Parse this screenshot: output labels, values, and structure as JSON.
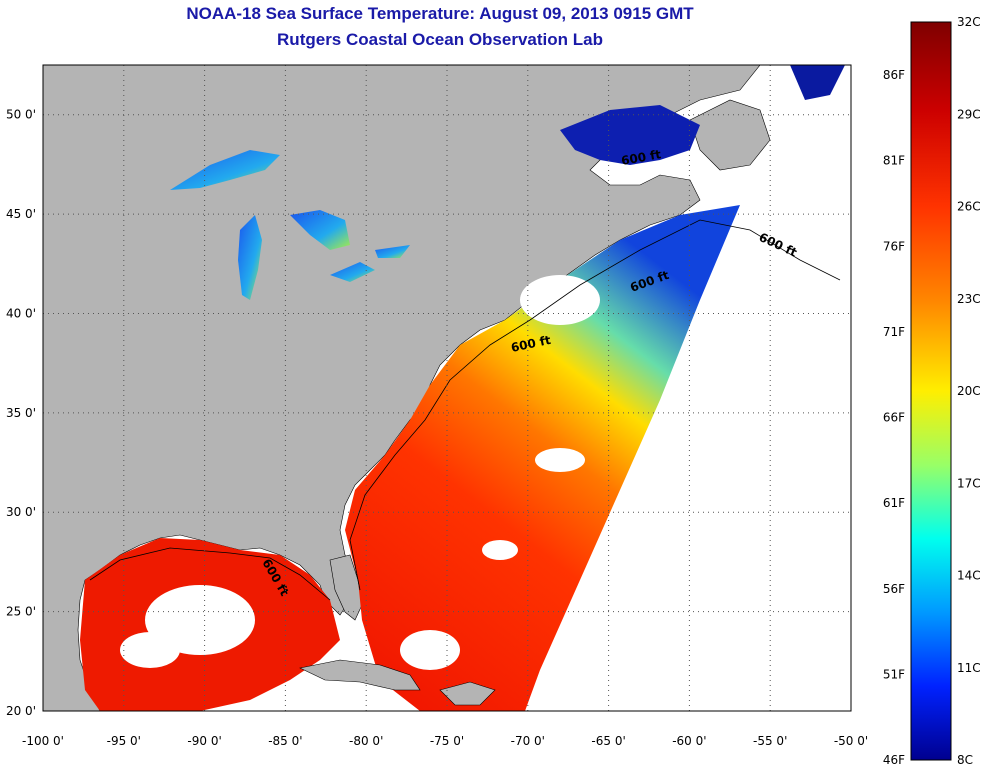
{
  "header": {
    "title": "NOAA-18 Sea Surface Temperature:  August 09, 2013 0915 GMT",
    "subtitle": "Rutgers Coastal Ocean Observation Lab"
  },
  "map": {
    "lon_range": [
      -100,
      -50
    ],
    "lat_range": [
      20,
      52.5
    ],
    "grid": "dotted",
    "x_ticks": [
      "-100 0'",
      "-95 0'",
      "-90 0'",
      "-85 0'",
      "-80 0'",
      "-75 0'",
      "-70 0'",
      "-65 0'",
      "-60 0'",
      "-55 0'",
      "-50 0'"
    ],
    "y_ticks": [
      "20 0'",
      "25 0'",
      "30 0'",
      "35 0'",
      "40 0'",
      "45 0'",
      "50 0'"
    ],
    "isobath_labels": [
      "600 ft",
      "600 ft",
      "600 ft",
      "600 ft",
      "600 ft"
    ],
    "land_color": "#b4b4b4",
    "no_data_color": "#ffffff"
  },
  "colorbar": {
    "celsius_labels": [
      "32C",
      "29C",
      "26C",
      "23C",
      "20C",
      "17C",
      "14C",
      "11C",
      "8C"
    ],
    "fahrenheit_labels": [
      "86F",
      "81F",
      "76F",
      "71F",
      "66F",
      "61F",
      "56F",
      "51F",
      "46F"
    ],
    "colors": [
      "#7f0000",
      "#ff0000",
      "#ff7f00",
      "#ffff00",
      "#7fff7f",
      "#00ffff",
      "#007fff",
      "#0000ff",
      "#00008f"
    ]
  }
}
